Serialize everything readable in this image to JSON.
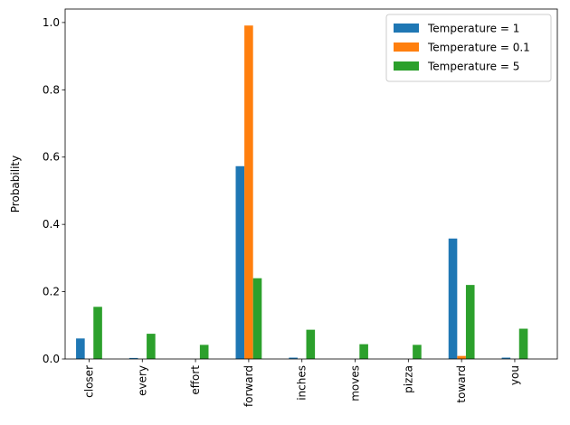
{
  "chart_data": {
    "type": "bar",
    "categories": [
      "closer",
      "every",
      "effort",
      "forward",
      "inches",
      "moves",
      "pizza",
      "toward",
      "you"
    ],
    "series": [
      {
        "name": "Temperature = 1",
        "color": "#1f77b4",
        "values": [
          0.061,
          0.003,
          0.0,
          0.573,
          0.004,
          0.0,
          0.0,
          0.358,
          0.004
        ]
      },
      {
        "name": "Temperature = 0.1",
        "color": "#ff7f0e",
        "values": [
          0.0,
          0.0,
          0.0,
          0.991,
          0.0,
          0.0,
          0.0,
          0.009,
          0.0
        ]
      },
      {
        "name": "Temperature = 5",
        "color": "#2ca02c",
        "values": [
          0.155,
          0.075,
          0.042,
          0.24,
          0.087,
          0.044,
          0.042,
          0.22,
          0.09
        ]
      }
    ],
    "ylabel": "Probability",
    "xlabel": "",
    "title": "",
    "ylim": [
      0,
      1.04
    ],
    "yticks": [
      "0.0",
      "0.2",
      "0.4",
      "0.6",
      "0.8",
      "1.0"
    ],
    "grid": false,
    "legend_position": "top-right"
  }
}
